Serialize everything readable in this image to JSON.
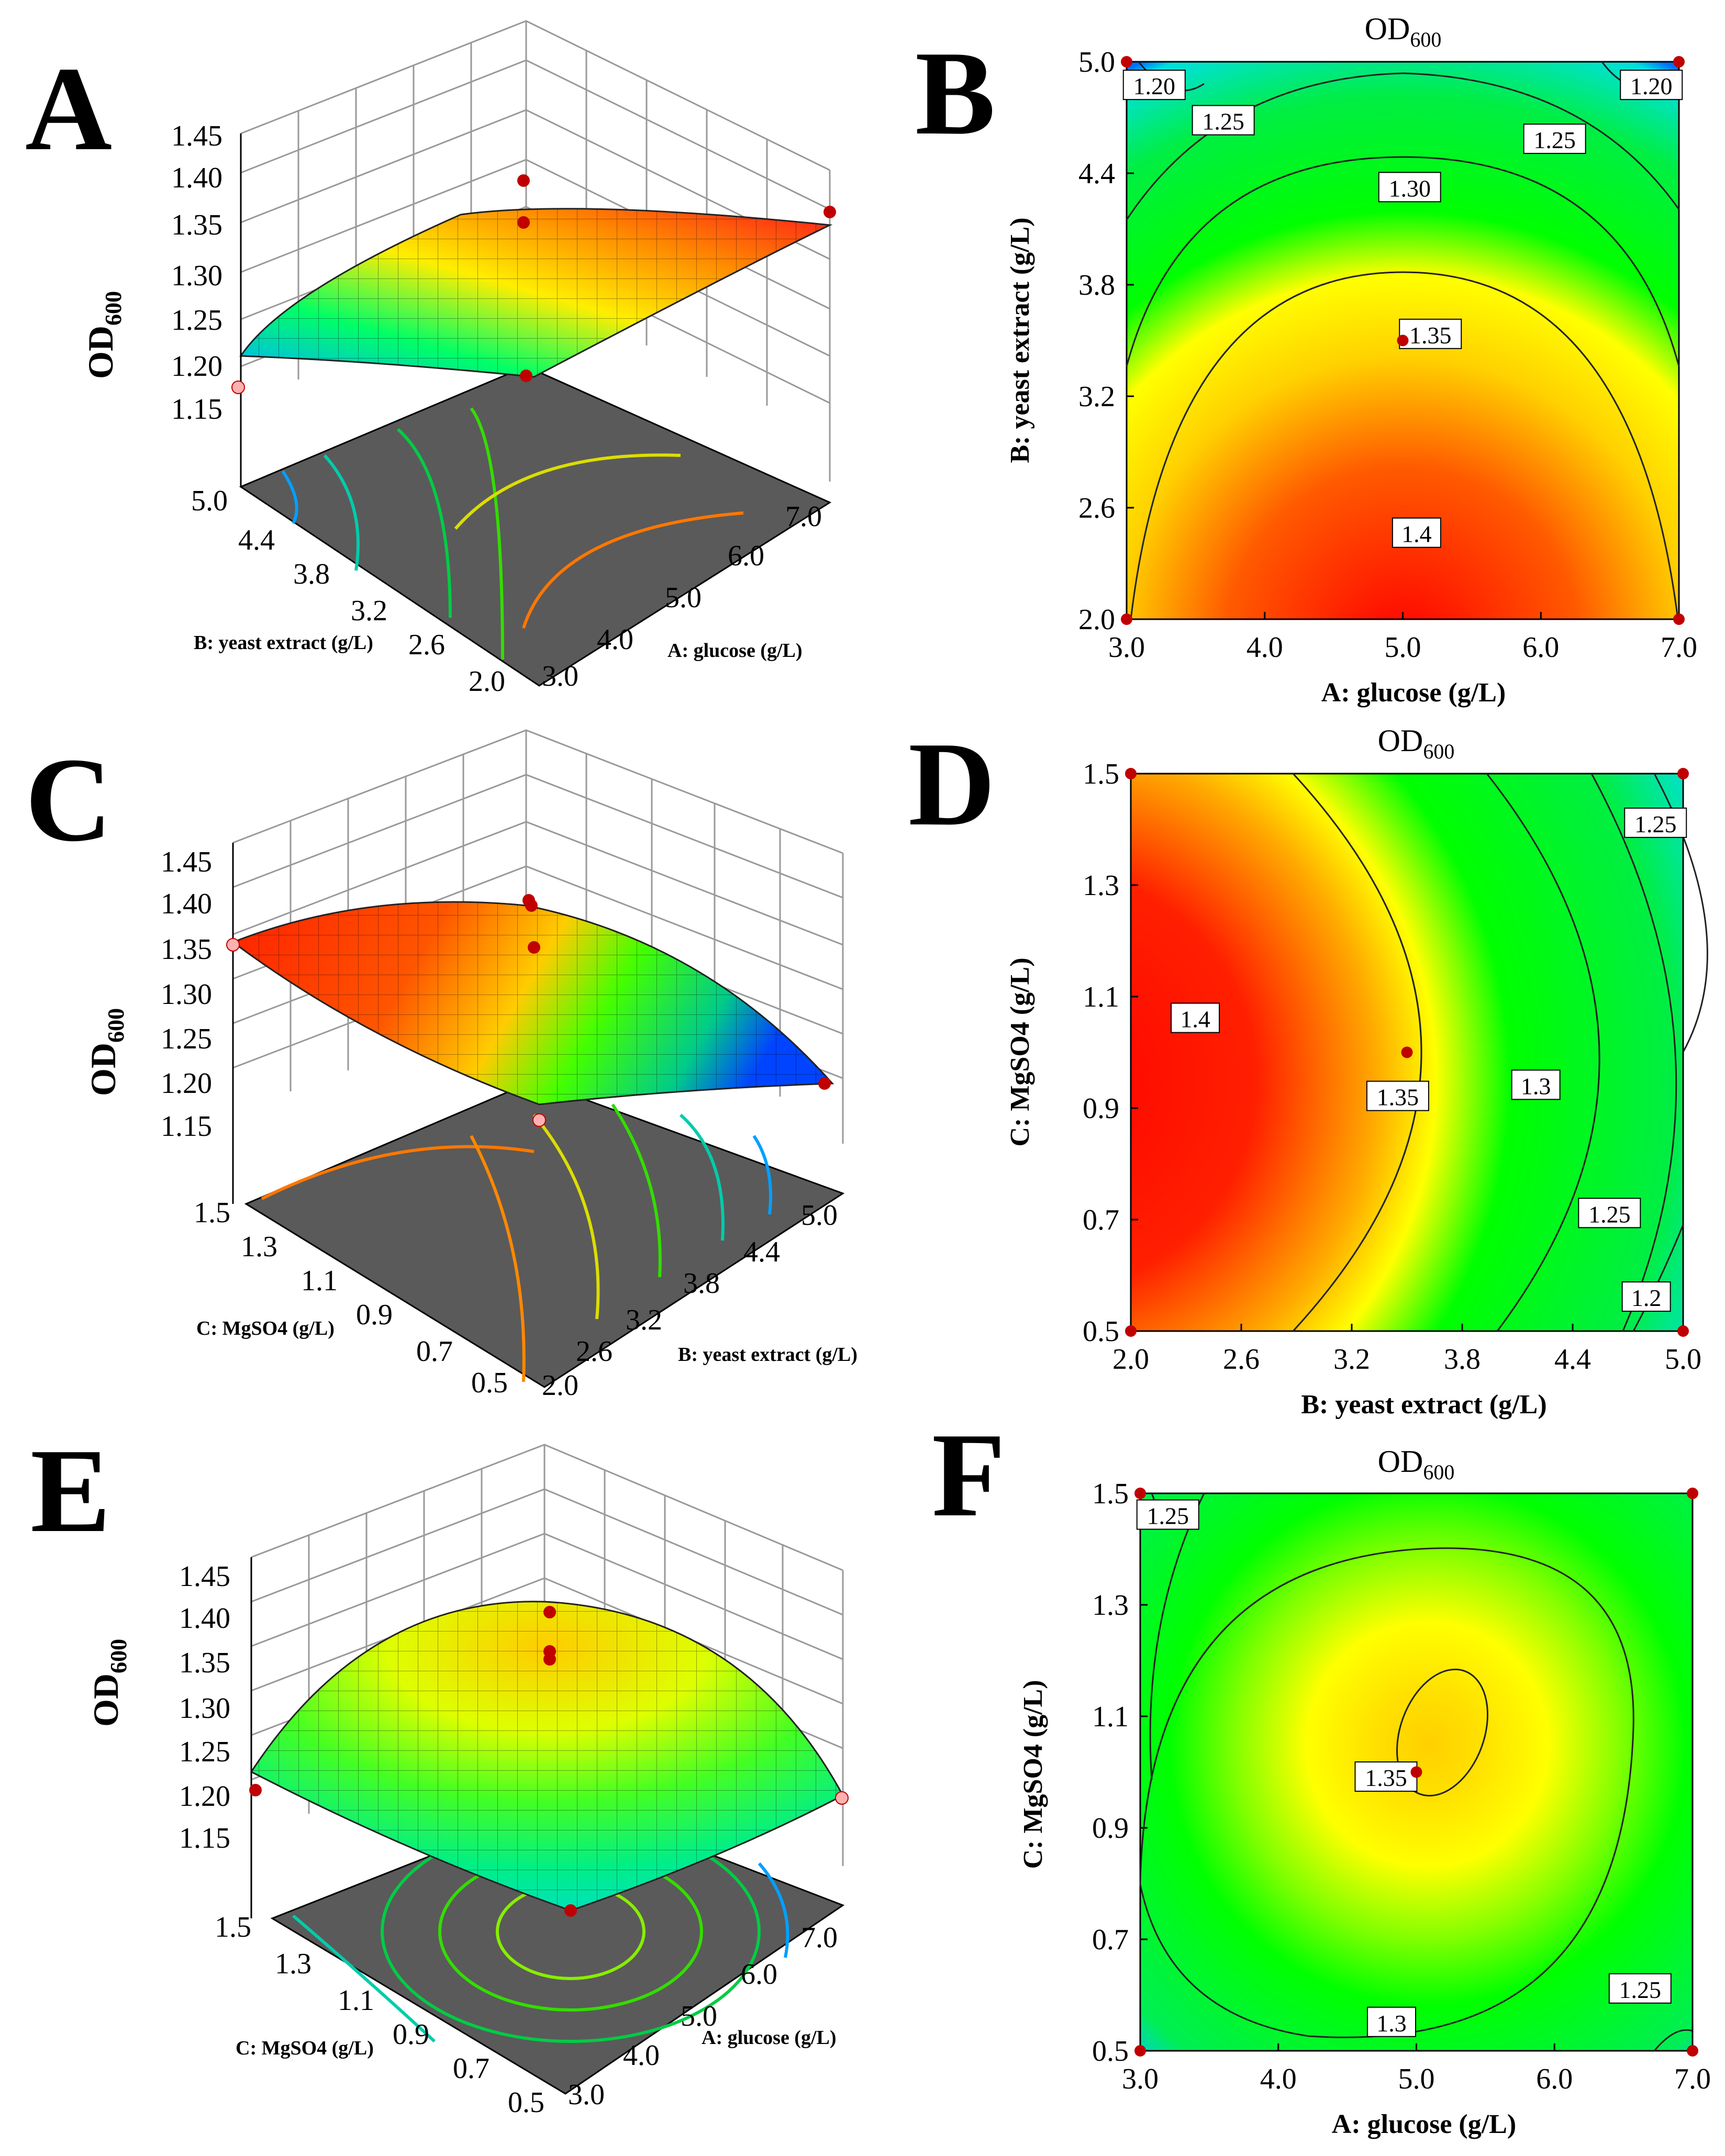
{
  "chart_data": [
    {
      "panel": "A",
      "type": "surface3d",
      "zlabel": "OD600",
      "z_ticks": [
        "1.15",
        "1.20",
        "1.25",
        "1.30",
        "1.35",
        "1.40",
        "1.45"
      ],
      "x_label": "A: glucose (g/L)",
      "x_ticks": [
        "3.0",
        "4.0",
        "5.0",
        "6.0",
        "7.0"
      ],
      "y_label": "B: yeast extract (g/L)",
      "y_ticks": [
        "2.0",
        "2.6",
        "3.2",
        "3.8",
        "4.4",
        "5.0"
      ],
      "surface_range": [
        1.18,
        1.41
      ],
      "design_points": [
        {
          "x": 3.0,
          "y": 5.0,
          "z": 1.18
        },
        {
          "x": 7.0,
          "y": 2.0,
          "z": 1.37
        },
        {
          "x": 5.0,
          "y": 3.5,
          "z": 1.4
        },
        {
          "x": 5.0,
          "y": 3.5,
          "z": 1.35
        },
        {
          "x": 3.0,
          "y": 2.0,
          "z": 1.29
        }
      ]
    },
    {
      "panel": "B",
      "type": "contour",
      "title_main": "OD",
      "title_sub": "600",
      "xlabel": "A:   glucose (g/L)",
      "ylabel": "B:  yeast extract (g/L)",
      "x_ticks": [
        "3.0",
        "4.0",
        "5.0",
        "6.0",
        "7.0"
      ],
      "x_tick_values": [
        3,
        4,
        5,
        6,
        7
      ],
      "y_ticks": [
        "2.0",
        "2.6",
        "3.2",
        "3.8",
        "4.4",
        "5.0"
      ],
      "y_tick_values": [
        2.0,
        2.6,
        3.2,
        3.8,
        4.4,
        5.0
      ],
      "xlim": [
        3,
        7
      ],
      "ylim": [
        2,
        5
      ],
      "contour_labels": [
        {
          "text": "1.20",
          "x": 3.2,
          "y": 4.87
        },
        {
          "text": "1.20",
          "x": 6.8,
          "y": 4.87
        },
        {
          "text": "1.25",
          "x": 3.7,
          "y": 4.68
        },
        {
          "text": "1.25",
          "x": 6.1,
          "y": 4.58
        },
        {
          "text": "1.30",
          "x": 5.05,
          "y": 4.32
        },
        {
          "text": "1.35",
          "x": 5.2,
          "y": 3.53
        },
        {
          "text": "1.4",
          "x": 5.1,
          "y": 2.46
        }
      ],
      "points": [
        {
          "x": 3,
          "y": 5
        },
        {
          "x": 7,
          "y": 5
        },
        {
          "x": 3,
          "y": 2
        },
        {
          "x": 7,
          "y": 2
        },
        {
          "x": 5,
          "y": 3.5
        }
      ]
    },
    {
      "panel": "C",
      "type": "surface3d",
      "zlabel": "OD600",
      "z_ticks": [
        "1.15",
        "1.20",
        "1.25",
        "1.30",
        "1.35",
        "1.40",
        "1.45"
      ],
      "x_label": "B: yeast extract (g/L)",
      "x_ticks": [
        "2.0",
        "2.6",
        "3.2",
        "3.8",
        "4.4",
        "5.0"
      ],
      "y_label": "C: MgSO4 (g/L)",
      "y_ticks": [
        "0.5",
        "0.7",
        "0.9",
        "1.1",
        "1.3",
        "1.5"
      ],
      "surface_range": [
        1.19,
        1.42
      ],
      "design_points": [
        {
          "x": 2.0,
          "y": 1.5,
          "z": 1.37
        },
        {
          "x": 3.5,
          "y": 1.0,
          "z": 1.4
        },
        {
          "x": 3.5,
          "y": 1.0,
          "z": 1.35
        },
        {
          "x": 5.0,
          "y": 0.5,
          "z": 1.21
        },
        {
          "x": 2.0,
          "y": 0.5,
          "z": 1.19
        }
      ]
    },
    {
      "panel": "D",
      "type": "contour",
      "title_main": "OD",
      "title_sub": "600",
      "xlabel": "B:  yeast extract (g/L)",
      "ylabel": "C:  MgSO4 (g/L)",
      "x_ticks": [
        "2.0",
        "2.6",
        "3.2",
        "3.8",
        "4.4",
        "5.0"
      ],
      "x_tick_values": [
        2.0,
        2.6,
        3.2,
        3.8,
        4.4,
        5.0
      ],
      "y_ticks": [
        "0.5",
        "0.7",
        "0.9",
        "1.1",
        "1.3",
        "1.5"
      ],
      "y_tick_values": [
        0.5,
        0.7,
        0.9,
        1.1,
        1.3,
        1.5
      ],
      "xlim": [
        2,
        5
      ],
      "ylim": [
        0.5,
        1.5
      ],
      "contour_labels": [
        {
          "text": "1.25",
          "x": 4.85,
          "y": 1.41
        },
        {
          "text": "1.4",
          "x": 2.35,
          "y": 1.06
        },
        {
          "text": "1.35",
          "x": 3.45,
          "y": 0.92
        },
        {
          "text": "1.3",
          "x": 4.2,
          "y": 0.94
        },
        {
          "text": "1.25",
          "x": 4.6,
          "y": 0.71
        },
        {
          "text": "1.2",
          "x": 4.8,
          "y": 0.56
        }
      ],
      "points": [
        {
          "x": 2,
          "y": 1.5
        },
        {
          "x": 5,
          "y": 1.5
        },
        {
          "x": 2,
          "y": 0.5
        },
        {
          "x": 5,
          "y": 0.5
        },
        {
          "x": 3.5,
          "y": 1.0
        }
      ]
    },
    {
      "panel": "E",
      "type": "surface3d",
      "zlabel": "OD600",
      "z_ticks": [
        "1.15",
        "1.20",
        "1.25",
        "1.30",
        "1.35",
        "1.40",
        "1.45"
      ],
      "x_label": "A: glucose (g/L)",
      "x_ticks": [
        "3.0",
        "4.0",
        "5.0",
        "6.0",
        "7.0"
      ],
      "y_label": "C: MgSO4 (g/L)",
      "y_ticks": [
        "0.5",
        "0.7",
        "0.9",
        "1.1",
        "1.3",
        "1.5"
      ],
      "surface_range": [
        1.21,
        1.36
      ],
      "design_points": [
        {
          "x": 3.0,
          "y": 1.5,
          "z": 1.23
        },
        {
          "x": 5.0,
          "y": 1.0,
          "z": 1.39
        },
        {
          "x": 5.0,
          "y": 1.0,
          "z": 1.35
        },
        {
          "x": 7.0,
          "y": 0.5,
          "z": 1.21
        },
        {
          "x": 3.0,
          "y": 0.5,
          "z": 1.16
        }
      ]
    },
    {
      "panel": "F",
      "type": "contour",
      "title_main": "OD",
      "title_sub": "600",
      "xlabel": "A:   glucose (g/L)",
      "ylabel": "C:  MgSO4 (g/L)",
      "x_ticks": [
        "3.0",
        "4.0",
        "5.0",
        "6.0",
        "7.0"
      ],
      "x_tick_values": [
        3,
        4,
        5,
        6,
        7
      ],
      "y_ticks": [
        "0.5",
        "0.7",
        "0.9",
        "1.1",
        "1.3",
        "1.5"
      ],
      "y_tick_values": [
        0.5,
        0.7,
        0.9,
        1.1,
        1.3,
        1.5
      ],
      "xlim": [
        3,
        7
      ],
      "ylim": [
        0.5,
        1.5
      ],
      "contour_labels": [
        {
          "text": "1.25",
          "x": 3.2,
          "y": 1.46
        },
        {
          "text": "1.35",
          "x": 4.78,
          "y": 0.99
        },
        {
          "text": "1.3",
          "x": 4.82,
          "y": 0.55
        },
        {
          "text": "1.25",
          "x": 6.62,
          "y": 0.61
        }
      ],
      "points": [
        {
          "x": 3,
          "y": 1.5
        },
        {
          "x": 7,
          "y": 1.5
        },
        {
          "x": 3,
          "y": 0.5
        },
        {
          "x": 7,
          "y": 0.5
        },
        {
          "x": 5,
          "y": 1.0
        }
      ]
    }
  ],
  "panel_letters": [
    "A",
    "B",
    "C",
    "D",
    "E",
    "F"
  ],
  "colors": {
    "surface_high": "#ff0000",
    "surface_mid": "#00ff00",
    "surface_low": "#0066ff",
    "floor": "#5a5a5a",
    "point": "#c00000"
  }
}
